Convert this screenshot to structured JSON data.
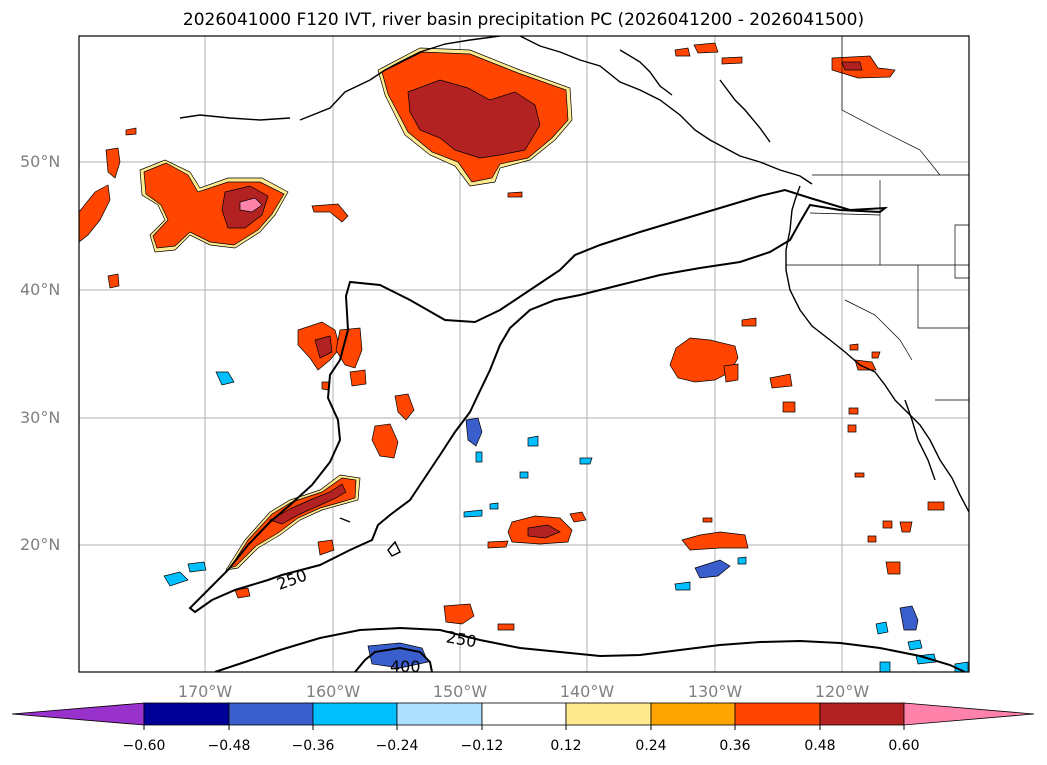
{
  "title": "2026041000 F120 IVT, river basin precipitation PC (2026041200 - 2026041500)",
  "map": {
    "lat_labels": [
      "50°N",
      "40°N",
      "30°N",
      "20°N"
    ],
    "lon_labels": [
      "170°W",
      "160°W",
      "150°W",
      "140°W",
      "130°W",
      "120°W"
    ],
    "ivt_contour_labels": [
      "250",
      "250",
      "400"
    ]
  },
  "colorbar": {
    "ticks": [
      "−0.60",
      "−0.48",
      "−0.36",
      "−0.24",
      "−0.12",
      "0.12",
      "0.24",
      "0.36",
      "0.48",
      "0.60"
    ],
    "colors": [
      "#9932CC",
      "#000099",
      "#3A5FCD",
      "#00BFFF",
      "#ADE1FF",
      "#FFFFFF",
      "#FFEA8F",
      "#FFA500",
      "#FF4500",
      "#B22222",
      "#FF82AB"
    ]
  },
  "fill_colors": {
    "pos_light": "#FFEA8F",
    "pos_orange": "#FFA500",
    "pos_red": "#FF4500",
    "pos_dark": "#B22222",
    "pos_pink": "#FF82AB",
    "neg_light": "#ADE1FF",
    "neg_cyan": "#00BFFF",
    "neg_blue": "#3A5FCD"
  }
}
